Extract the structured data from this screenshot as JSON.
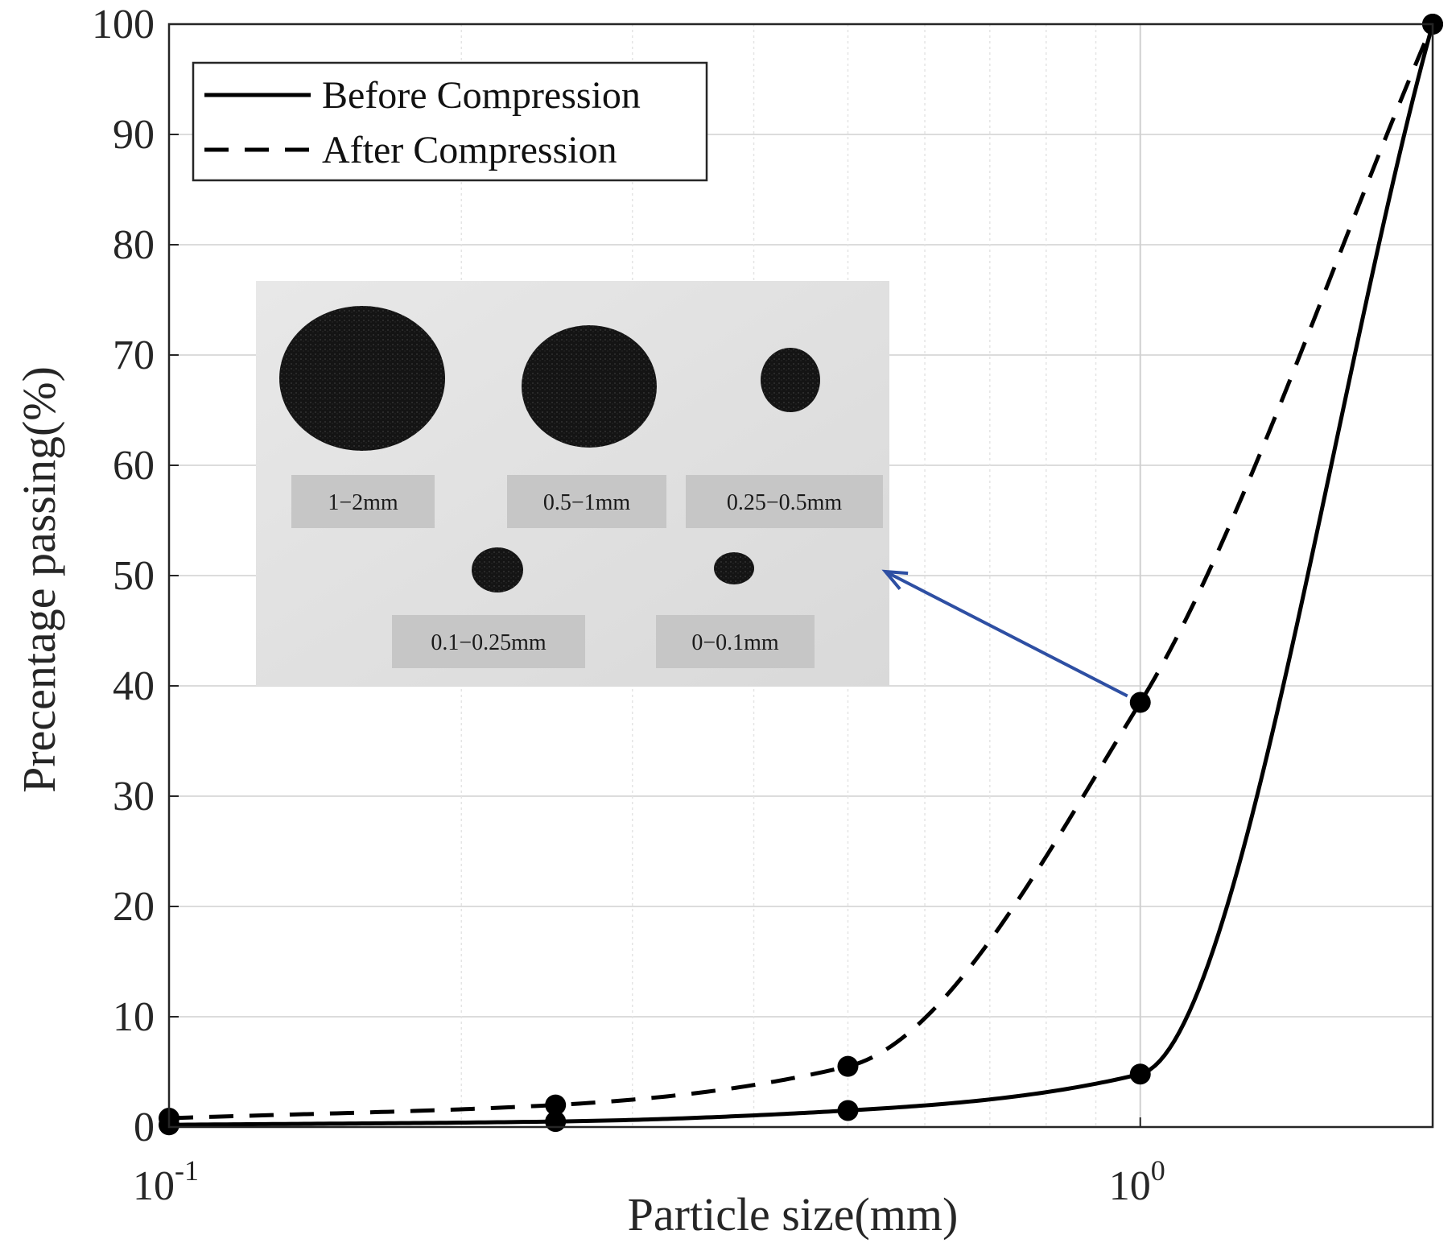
{
  "chart_data": {
    "type": "line",
    "title": "",
    "xlabel": "Particle size(mm)",
    "ylabel": "Precentage passing(%)",
    "x_scale": "log",
    "xlim": [
      0.1,
      2
    ],
    "ylim": [
      0,
      100
    ],
    "x_ticks": [
      {
        "value": 0.1,
        "base": "10",
        "exp": "-1"
      },
      {
        "value": 1,
        "base": "10",
        "exp": "0"
      }
    ],
    "y_ticks": [
      "0",
      "10",
      "20",
      "30",
      "40",
      "50",
      "60",
      "70",
      "80",
      "90",
      "100"
    ],
    "grid": true,
    "legend_position": "top-left",
    "series": [
      {
        "name": "Before Compression",
        "line_style": "solid",
        "color": "#000000",
        "x": [
          0.1,
          0.25,
          0.5,
          1,
          2
        ],
        "y": [
          0.2,
          0.5,
          1.5,
          4.8,
          100
        ]
      },
      {
        "name": "After Compression",
        "line_style": "dashed",
        "color": "#000000",
        "x": [
          0.1,
          0.25,
          0.5,
          1,
          2
        ],
        "y": [
          0.8,
          2.0,
          5.5,
          38.5,
          100
        ]
      }
    ],
    "annotation": {
      "arrow_color": "#2e4fa3",
      "inset_photo_labels": [
        "1−2mm",
        "0.5−1mm",
        "0.25−0.5mm",
        "0.1−0.25mm",
        "0−0.1mm"
      ]
    }
  }
}
